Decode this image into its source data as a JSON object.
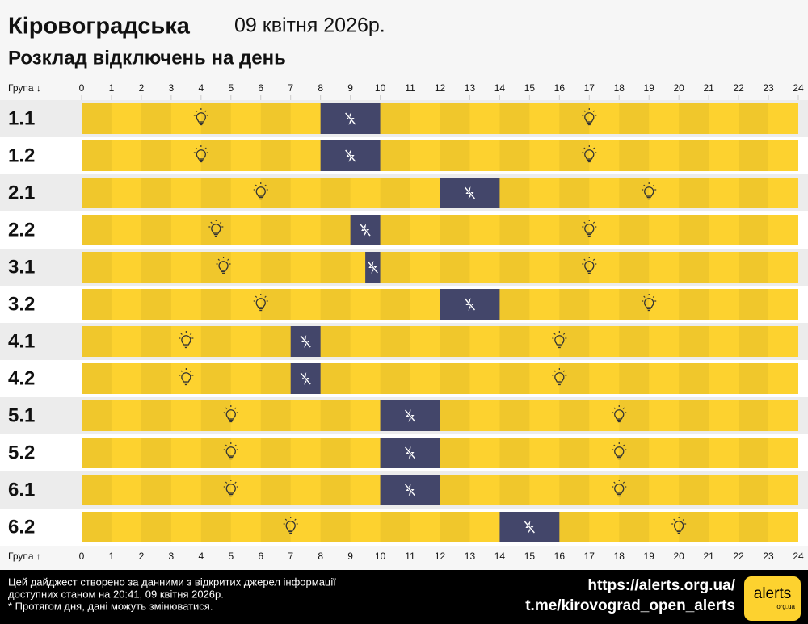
{
  "header": {
    "region": "Кіровоградська",
    "date": "09 квітня 2026р.",
    "subtitle": "Розклад відключень на день"
  },
  "chart_data": {
    "type": "schedule",
    "x_label_top": "Група ↓",
    "x_label_bottom": "Група ↑",
    "xlim": [
      0,
      24
    ],
    "xticks": [
      0,
      1,
      2,
      3,
      4,
      5,
      6,
      7,
      8,
      9,
      10,
      11,
      12,
      13,
      14,
      15,
      16,
      17,
      18,
      19,
      20,
      21,
      22,
      23,
      24
    ],
    "categories": [
      "1.1",
      "1.2",
      "2.1",
      "2.2",
      "3.1",
      "3.2",
      "4.1",
      "4.2",
      "5.1",
      "5.2",
      "6.1",
      "6.2"
    ],
    "outages": [
      [
        8,
        10
      ],
      [
        8,
        10
      ],
      [
        12,
        14
      ],
      [
        9,
        10
      ],
      [
        9.5,
        10
      ],
      [
        12,
        14
      ],
      [
        7,
        8
      ],
      [
        7,
        8
      ],
      [
        10,
        12
      ],
      [
        10,
        12
      ],
      [
        10,
        12
      ],
      [
        14,
        16
      ]
    ],
    "on_color": "#fdd22f",
    "off_color": "#43466a"
  },
  "footer": {
    "note_lines": [
      "Цей дайджест створено за данними з відкритих джерел інформації",
      "доступних станом на 20:41, 09 квітня 2026р.",
      "* Протягом дня, дані можуть змінюватися."
    ],
    "links": [
      "https://alerts.org.ua/",
      "t.me/kirovograd_open_alerts"
    ],
    "logo": "alerts",
    "logo_sub": "org.ua"
  }
}
